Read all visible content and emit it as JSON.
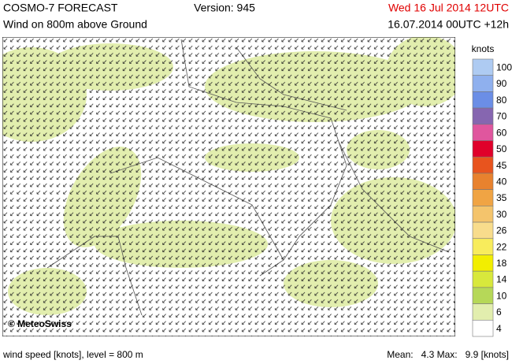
{
  "header": {
    "title": "COSMO-7 FORECAST",
    "version": "Version: 945",
    "valid_time": "Wed 16 Jul 2014 12UTC",
    "subtitle": "Wind on 800m above Ground",
    "run": "16.07.2014 00UTC +12h"
  },
  "map": {
    "copyright": "© MeteoSwiss"
  },
  "legend": {
    "unit": "knots",
    "items": [
      {
        "label": "100",
        "color": "#aecbf2"
      },
      {
        "label": "90",
        "color": "#8fb0ee"
      },
      {
        "label": "80",
        "color": "#6b8ee6"
      },
      {
        "label": "70",
        "color": "#8666b0"
      },
      {
        "label": "60",
        "color": "#e0569e"
      },
      {
        "label": "50",
        "color": "#e0002a"
      },
      {
        "label": "45",
        "color": "#e8541e"
      },
      {
        "label": "40",
        "color": "#e8822e"
      },
      {
        "label": "35",
        "color": "#f0a444"
      },
      {
        "label": "30",
        "color": "#f4c46c"
      },
      {
        "label": "26",
        "color": "#f8dc8c"
      },
      {
        "label": "22",
        "color": "#f8ec5c"
      },
      {
        "label": "18",
        "color": "#f2ee00"
      },
      {
        "label": "14",
        "color": "#d8e83c"
      },
      {
        "label": "10",
        "color": "#b6d858"
      },
      {
        "label": "6",
        "color": "#e2eeae"
      },
      {
        "label": "4",
        "color": "#ffffff"
      }
    ]
  },
  "footer": {
    "field": "wind speed [knots], level = 800 m",
    "stats": "Mean:   4.3 Max:   9.9 [knots]"
  }
}
